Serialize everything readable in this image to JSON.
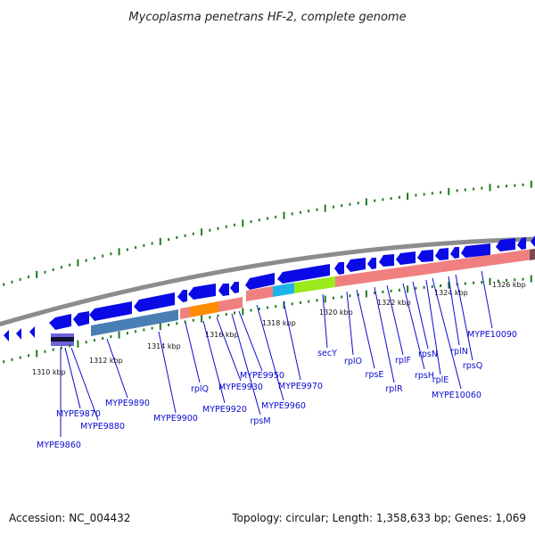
{
  "title": "Mycoplasma penetrans HF-2, complete genome",
  "footer": {
    "accession": "Accession: NC_004432",
    "summary": "Topology: circular; Length: 1,358,633 bp; Genes: 1,069"
  },
  "colors": {
    "backbone": "#8c8c8c",
    "cds": "#0a0ae6",
    "tick": "#1e7a1e",
    "label": "#0b0bd0",
    "rna_pink": "#f08080",
    "steelblue": "#4a7fb5",
    "orange": "#ff8c00",
    "cyan": "#1cb4e8",
    "lime": "#9aea1e"
  },
  "scale_labels": [
    {
      "text": "1310 kbp",
      "kbp": 1310
    },
    {
      "text": "1312 kbp",
      "kbp": 1312
    },
    {
      "text": "1314 kbp",
      "kbp": 1314
    },
    {
      "text": "1316 kbp",
      "kbp": 1316
    },
    {
      "text": "1318 kbp",
      "kbp": 1318
    },
    {
      "text": "1320 kbp",
      "kbp": 1320
    },
    {
      "text": "1322 kbp",
      "kbp": 1322
    },
    {
      "text": "1324 kbp",
      "kbp": 1324
    },
    {
      "text": "1326 kbp",
      "kbp": 1326
    }
  ],
  "gene_labels": [
    {
      "name": "MYPE9860"
    },
    {
      "name": "MYPE9870"
    },
    {
      "name": "MYPE9880"
    },
    {
      "name": "MYPE9890"
    },
    {
      "name": "MYPE9900"
    },
    {
      "name": "rplQ"
    },
    {
      "name": "MYPE9920"
    },
    {
      "name": "MYPE9930"
    },
    {
      "name": "rpsM"
    },
    {
      "name": "MYPE9950"
    },
    {
      "name": "MYPE9960"
    },
    {
      "name": "MYPE9970"
    },
    {
      "name": "secY"
    },
    {
      "name": "rplO"
    },
    {
      "name": "rpsE"
    },
    {
      "name": "rplR"
    },
    {
      "name": "rplF"
    },
    {
      "name": "rpsH"
    },
    {
      "name": "rpsN"
    },
    {
      "name": "rplE"
    },
    {
      "name": "MYPE10060"
    },
    {
      "name": "rplN"
    },
    {
      "name": "rpsQ"
    },
    {
      "name": "MYPE10090"
    }
  ]
}
